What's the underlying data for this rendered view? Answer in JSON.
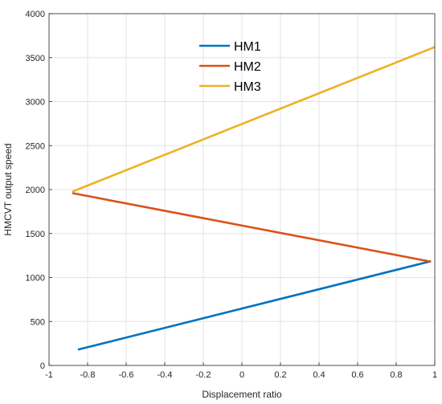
{
  "chart_data": {
    "type": "line",
    "xlabel": "Displacement ratio",
    "ylabel": "HMCVT output speed",
    "xlim": [
      -1,
      1
    ],
    "ylim": [
      0,
      4000
    ],
    "x_ticks": [
      -1,
      -0.8,
      -0.6,
      -0.4,
      -0.2,
      0,
      0.2,
      0.4,
      0.6,
      0.8,
      1
    ],
    "x_tick_labels": [
      "-1",
      "-0.8",
      "-0.6",
      "-0.4",
      "-0.2",
      "0",
      "0.2",
      "0.4",
      "0.6",
      "0.8",
      "1"
    ],
    "y_ticks": [
      0,
      500,
      1000,
      1500,
      2000,
      2500,
      3000,
      3500,
      4000
    ],
    "y_tick_labels": [
      "0",
      "500",
      "1000",
      "1500",
      "2000",
      "2500",
      "3000",
      "3500",
      "4000"
    ],
    "grid": true,
    "legend_position": "top-center",
    "series": [
      {
        "name": "HM1",
        "color": "#0072BD",
        "x": [
          -0.85,
          0.98
        ],
        "y": [
          180,
          1185
        ]
      },
      {
        "name": "HM2",
        "color": "#D95319",
        "x": [
          -0.88,
          0.98
        ],
        "y": [
          1960,
          1180
        ]
      },
      {
        "name": "HM3",
        "color": "#EDB120",
        "x": [
          -0.88,
          1.0
        ],
        "y": [
          1975,
          3620
        ]
      }
    ]
  }
}
